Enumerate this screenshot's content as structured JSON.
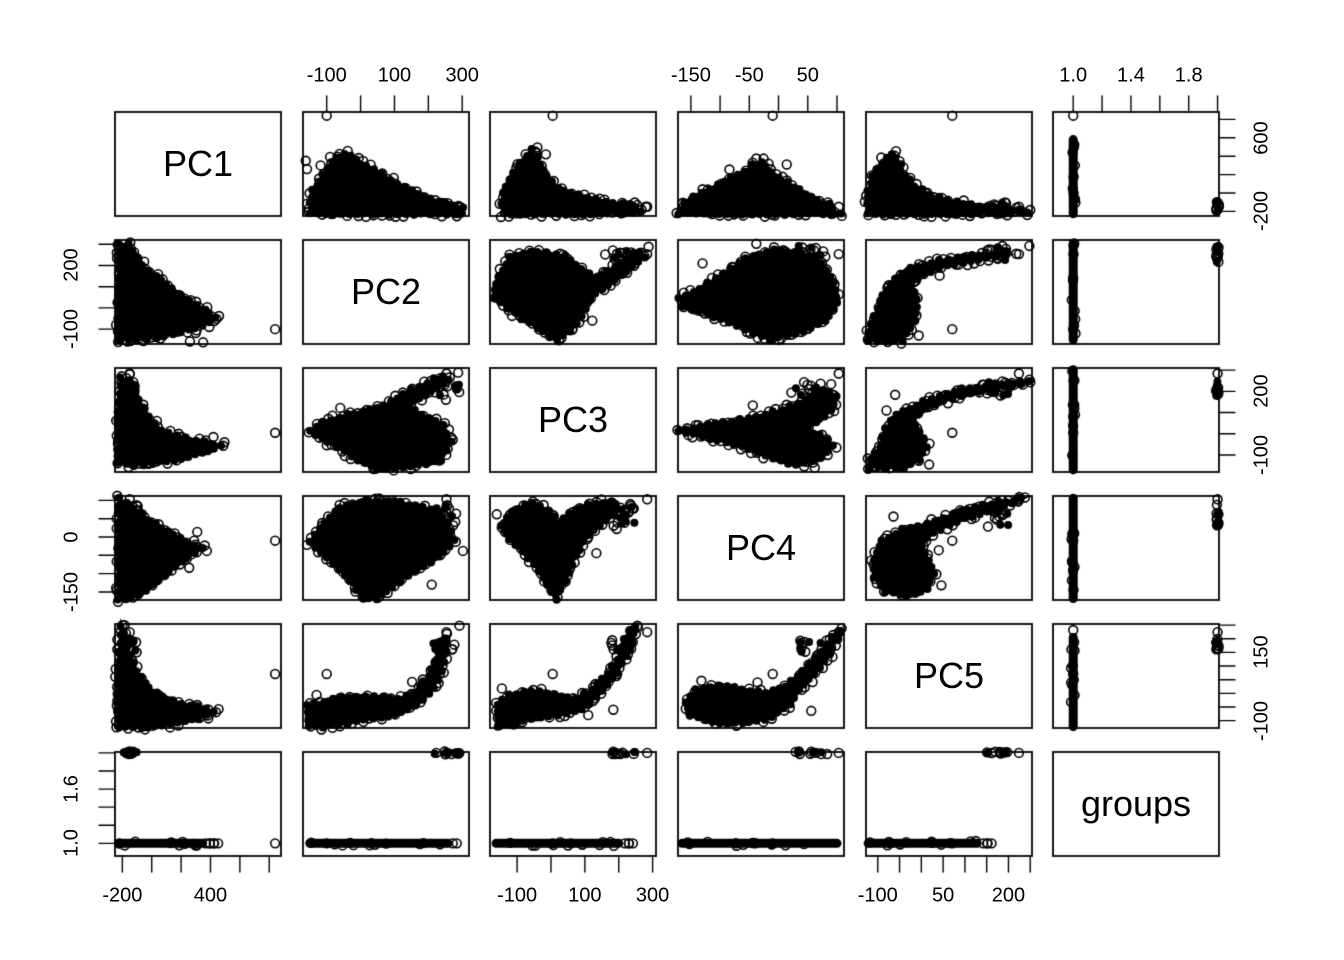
{
  "chart_data": {
    "type": "scatter",
    "subtype": "scatterplot-matrix-pairs",
    "title": "",
    "marker": {
      "shape": "open-circle",
      "radius": 4.4,
      "color": "#000000"
    },
    "background_color": "#ffffff",
    "stroke_color": "#000000",
    "grid": false,
    "legend": "none",
    "groups_values": [
      1,
      2
    ],
    "variables": [
      {
        "name": "PC1",
        "domain": [
          -250,
          880
        ],
        "ticks": [
          -200,
          0,
          200,
          400,
          600,
          800
        ],
        "col_tick_labels": [
          "-200",
          "",
          "",
          "400",
          "",
          ""
        ],
        "row_tick_labels": [
          "-200",
          "",
          "",
          "",
          "600",
          ""
        ],
        "group1_dense": [
          -225,
          345
        ],
        "group1_extras": [
          368,
          395,
          425
        ],
        "group1_full": [
          -225,
          580
        ],
        "outlier": 840,
        "group2_range": [
          -205,
          -95
        ],
        "group2_stray": null,
        "cap_ring": null
      },
      {
        "name": "PC2",
        "domain": [
          -170,
          320
        ],
        "ticks": [
          -100,
          0,
          100,
          200,
          300
        ],
        "col_tick_labels": [
          "-100",
          "",
          "100",
          "",
          "300"
        ],
        "row_tick_labels": [
          "-100",
          "",
          "",
          "200",
          ""
        ],
        "group1_dense": [
          -150,
          258
        ],
        "group1_extras": [
          272
        ],
        "group1_full": [
          -150,
          305
        ],
        "outlier": -100,
        "group2_range": [
          215,
          292
        ],
        "group2_stray": null,
        "cap_ring": null
      },
      {
        "name": "PC3",
        "domain": [
          -180,
          310
        ],
        "ticks": [
          -100,
          0,
          100,
          200,
          300
        ],
        "col_tick_labels": [
          "-100",
          "",
          "100",
          "",
          "300"
        ],
        "row_tick_labels": [
          "-100",
          "",
          "",
          "200",
          ""
        ],
        "group1_dense": [
          -162,
          200
        ],
        "group1_extras": [
          218,
          230
        ],
        "group1_full": [
          -170,
          302
        ],
        "outlier": 5,
        "group2_range": [
          178,
          248
        ],
        "group2_stray": 284,
        "cap_ring": null
      },
      {
        "name": "PC4",
        "domain": [
          -172,
          112
        ],
        "ticks": [
          -150,
          -100,
          -50,
          0,
          50,
          100
        ],
        "col_tick_labels": [
          "-150",
          "",
          "-50",
          "",
          "50",
          ""
        ],
        "row_tick_labels": [
          "-150",
          "",
          "",
          "0",
          "",
          ""
        ],
        "group1_dense": [
          -165,
          100
        ],
        "group1_extras": [],
        "group1_full": [
          -168,
          106
        ],
        "outlier": -10,
        "group2_range": [
          28,
          88
        ],
        "group2_stray": 103,
        "cap_ring": null
      },
      {
        "name": "PC5",
        "domain": [
          -127,
          254
        ],
        "ticks": [
          -100,
          -50,
          0,
          50,
          100,
          150,
          200,
          250
        ],
        "col_tick_labels": [
          "-100",
          "",
          "",
          "50",
          "",
          "",
          "200",
          ""
        ],
        "row_tick_labels": [
          "-100",
          "",
          "",
          "",
          "",
          "150",
          "",
          ""
        ],
        "group1_dense": [
          -122,
          128
        ],
        "group1_extras": [
          142,
          152
        ],
        "group1_full": [
          -122,
          205
        ],
        "outlier": 71,
        "group2_range": [
          150,
          200
        ],
        "group2_stray": 224,
        "cap_ring": 232
      },
      {
        "name": "groups",
        "domain": [
          0.86,
          2.01
        ],
        "ticks": [
          1.0,
          1.2,
          1.4,
          1.6,
          1.8,
          2.0
        ],
        "col_tick_labels": [
          "1.0",
          "",
          "1.4",
          "",
          "1.8",
          ""
        ],
        "row_tick_labels": [
          "1.0",
          "",
          "",
          "1.6",
          "",
          ""
        ],
        "group1_dense": [
          1,
          1
        ],
        "group1_extras": [],
        "group1_full": [
          1,
          1
        ],
        "outlier": 1,
        "group2_range": [
          2,
          2
        ],
        "group2_stray": null,
        "cap_ring": null
      }
    ],
    "pair_shapes": {
      "0-1": {
        "poly": [
          [
            -228,
            -150
          ],
          [
            -230,
            60
          ],
          [
            -222,
            300
          ],
          [
            -160,
            300
          ],
          [
            -70,
            205
          ],
          [
            30,
            150
          ],
          [
            140,
            90
          ],
          [
            255,
            40
          ],
          [
            360,
            -10
          ],
          [
            428,
            -45
          ],
          [
            340,
            -85
          ],
          [
            200,
            -110
          ],
          [
            30,
            -140
          ],
          [
            -100,
            -150
          ]
        ],
        "rings": [
          [
            392,
            -90
          ],
          [
            425,
            -62
          ],
          [
            458,
            -38
          ],
          [
            300,
            -118
          ],
          [
            350,
            -162
          ],
          [
            260,
            -158
          ]
        ]
      },
      "0-2": {
        "poly": [
          [
            -228,
            -140
          ],
          [
            -232,
            70
          ],
          [
            -212,
            265
          ],
          [
            -158,
            250
          ],
          [
            -90,
            160
          ],
          [
            -20,
            80
          ],
          [
            60,
            20
          ],
          [
            170,
            -10
          ],
          [
            300,
            -30
          ],
          [
            470,
            -55
          ],
          [
            340,
            -90
          ],
          [
            150,
            -122
          ],
          [
            0,
            -140
          ],
          [
            -120,
            -148
          ]
        ],
        "rings": [
          [
            495,
            -40
          ],
          [
            420,
            -15
          ],
          [
            -150,
            280
          ]
        ]
      },
      "0-3": {
        "poly": [
          [
            -226,
            105
          ],
          [
            -120,
            78
          ],
          [
            -10,
            46
          ],
          [
            110,
            16
          ],
          [
            230,
            -12
          ],
          [
            345,
            -30
          ],
          [
            240,
            -58
          ],
          [
            120,
            -92
          ],
          [
            10,
            -132
          ],
          [
            -100,
            -160
          ],
          [
            -180,
            -168
          ],
          [
            -228,
            -170
          ]
        ],
        "rings": [
          [
            375,
            -38
          ],
          [
            310,
            14
          ],
          [
            255,
            -84
          ]
        ]
      },
      "0-4": {
        "poly": [
          [
            -228,
            -122
          ],
          [
            -232,
            60
          ],
          [
            -208,
            245
          ],
          [
            -168,
            170
          ],
          [
            -100,
            80
          ],
          [
            -20,
            20
          ],
          [
            80,
            -15
          ],
          [
            200,
            -38
          ],
          [
            320,
            -48
          ],
          [
            425,
            -68
          ],
          [
            320,
            -92
          ],
          [
            180,
            -110
          ],
          [
            20,
            -122
          ],
          [
            -120,
            -125
          ]
        ],
        "rings": [
          [
            455,
            -58
          ],
          [
            385,
            -92
          ],
          [
            -185,
            250
          ]
        ]
      },
      "1-2": {
        "poly": [
          [
            50,
            -170
          ],
          [
            150,
            -155
          ],
          [
            240,
            -122
          ],
          [
            268,
            -40
          ],
          [
            245,
            40
          ],
          [
            180,
            90
          ],
          [
            140,
            132
          ],
          [
            210,
            205
          ],
          [
            262,
            258
          ],
          [
            240,
            274
          ],
          [
            128,
            190
          ],
          [
            68,
            130
          ],
          [
            -38,
            90
          ],
          [
            -112,
            58
          ],
          [
            -150,
            15
          ],
          [
            -95,
            -40
          ],
          [
            -25,
            -108
          ]
        ],
        "rings": [
          [
            288,
            288
          ],
          [
            252,
            160
          ],
          [
            -60,
            122
          ]
        ]
      },
      "1-3": {
        "poly": [
          [
            -150,
            -15
          ],
          [
            -108,
            42
          ],
          [
            -60,
            80
          ],
          [
            20,
            100
          ],
          [
            120,
            94
          ],
          [
            205,
            74
          ],
          [
            258,
            40
          ],
          [
            274,
            -8
          ],
          [
            232,
            -56
          ],
          [
            162,
            -94
          ],
          [
            92,
            -134
          ],
          [
            45,
            -170
          ],
          [
            5,
            -164
          ],
          [
            -30,
            -122
          ],
          [
            -80,
            -72
          ],
          [
            -118,
            -44
          ]
        ],
        "rings": [
          [
            302,
            -38
          ],
          [
            282,
            64
          ],
          [
            210,
            -130
          ]
        ]
      },
      "1-4": {
        "poly": [
          [
            -155,
            -122
          ],
          [
            -156,
            -45
          ],
          [
            -60,
            -14
          ],
          [
            40,
            -10
          ],
          [
            110,
            -22
          ],
          [
            160,
            5
          ],
          [
            200,
            60
          ],
          [
            232,
            148
          ],
          [
            248,
            190
          ],
          [
            252,
            152
          ],
          [
            238,
            82
          ],
          [
            215,
            22
          ],
          [
            185,
            -26
          ],
          [
            140,
            -62
          ],
          [
            60,
            -88
          ],
          [
            -40,
            -108
          ],
          [
            -110,
            -122
          ]
        ],
        "rings": [
          [
            255,
            218
          ],
          [
            152,
            42
          ],
          [
            -130,
            -6
          ],
          [
            292,
            248
          ]
        ]
      },
      "2-3": {
        "poly": [
          [
            -150,
            30
          ],
          [
            -115,
            72
          ],
          [
            -55,
            94
          ],
          [
            -5,
            72
          ],
          [
            25,
            36
          ],
          [
            55,
            66
          ],
          [
            110,
            90
          ],
          [
            178,
            98
          ],
          [
            208,
            78
          ],
          [
            162,
            46
          ],
          [
            112,
            6
          ],
          [
            72,
            -52
          ],
          [
            42,
            -122
          ],
          [
            15,
            -170
          ],
          [
            -12,
            -132
          ],
          [
            -48,
            -76
          ],
          [
            -105,
            -22
          ]
        ],
        "rings": [
          [
            234,
            90
          ],
          [
            194,
            22
          ],
          [
            134,
            -44
          ],
          [
            -160,
            62
          ]
        ]
      },
      "2-4": {
        "poly": [
          [
            -155,
            -120
          ],
          [
            -160,
            -42
          ],
          [
            -124,
            -6
          ],
          [
            -60,
            12
          ],
          [
            10,
            -6
          ],
          [
            70,
            -20
          ],
          [
            122,
            12
          ],
          [
            168,
            72
          ],
          [
            208,
            152
          ],
          [
            235,
            230
          ],
          [
            248,
            244
          ],
          [
            232,
            164
          ],
          [
            197,
            77
          ],
          [
            152,
            6
          ],
          [
            92,
            -56
          ],
          [
            22,
            -82
          ],
          [
            -60,
            -94
          ],
          [
            -124,
            -117
          ]
        ],
        "rings": [
          [
            255,
            248
          ],
          [
            184,
            -60
          ],
          [
            -145,
            18
          ],
          [
            110,
            -80
          ]
        ]
      },
      "3-4": {
        "poly": [
          [
            -150,
            -82
          ],
          [
            -160,
            -32
          ],
          [
            -142,
            12
          ],
          [
            -102,
            30
          ],
          [
            -62,
            16
          ],
          [
            -22,
            2
          ],
          [
            12,
            26
          ],
          [
            42,
            82
          ],
          [
            72,
            152
          ],
          [
            92,
            208
          ],
          [
            104,
            230
          ],
          [
            88,
            142
          ],
          [
            62,
            72
          ],
          [
            36,
            12
          ],
          [
            20,
            -42
          ],
          [
            -12,
            -90
          ],
          [
            -62,
            -110
          ],
          [
            -112,
            -108
          ]
        ],
        "rings": [
          [
            108,
            238
          ],
          [
            -36,
            40
          ],
          [
            56,
            -64
          ],
          [
            -132,
            46
          ]
        ]
      }
    }
  }
}
